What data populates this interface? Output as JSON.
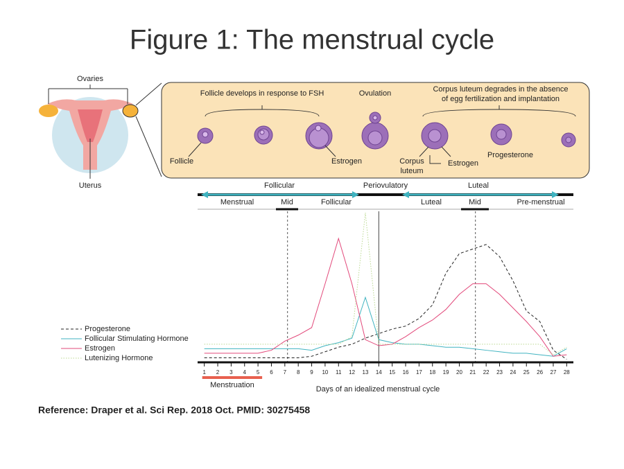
{
  "title": "Figure 1: The menstrual cycle",
  "diagram": {
    "ovaries_label": "Ovaries",
    "uterus_label": "Uterus",
    "stage_headers": [
      "Follicle develops in response to FSH",
      "Ovulation"
    ],
    "luteum_header": [
      "Corpus luteum degrades in the absence",
      "of egg fertilization and implantation"
    ],
    "follicle_label": "Follicle",
    "estrogen_label_1": "Estrogen",
    "corpus_luteum_label": [
      "Corpus",
      "luteum"
    ],
    "estrogen_label_2": "Estrogen",
    "progesterone_label": "Progesterone"
  },
  "phases": {
    "top": [
      "Follicular",
      "Periovulatory",
      "Luteal"
    ],
    "bottom": [
      "Menstrual",
      "Mid",
      "Follicular",
      "Luteal",
      "Mid",
      "Pre-menstrual"
    ]
  },
  "chart_data": {
    "type": "line",
    "x_label": "Days of an idealized menstrual cycle",
    "x": [
      1,
      2,
      3,
      4,
      5,
      6,
      7,
      8,
      9,
      10,
      11,
      12,
      13,
      14,
      15,
      16,
      17,
      18,
      19,
      20,
      21,
      22,
      23,
      24,
      25,
      26,
      27,
      28
    ],
    "xlim": [
      0.5,
      28.5
    ],
    "xticks": [
      1,
      2,
      3,
      4,
      5,
      6,
      7,
      8,
      9,
      10,
      11,
      12,
      13,
      14,
      15,
      16,
      17,
      18,
      19,
      20,
      21,
      22,
      23,
      24,
      25,
      26,
      27,
      28
    ],
    "ylim": [
      0,
      100
    ],
    "reference_days": [
      7.2,
      14,
      21.2
    ],
    "menstruation": {
      "label": "Menstruation",
      "days": [
        1,
        5
      ]
    },
    "series": [
      {
        "name": "Progesterone",
        "color": "#222222",
        "style": "dashed",
        "values": [
          3,
          3,
          3,
          3,
          3,
          3,
          3,
          3,
          4,
          7,
          10,
          12,
          16,
          19,
          22,
          24,
          29,
          38,
          59,
          72,
          75,
          78,
          70,
          54,
          34,
          27,
          8,
          2
        ]
      },
      {
        "name": "Follicular Stimulating Hormone",
        "color": "#3fb3c0",
        "style": "solid",
        "values": [
          9,
          9,
          9,
          9,
          9,
          9,
          9,
          9,
          8,
          11,
          13,
          16,
          43,
          15,
          13,
          12,
          12,
          11,
          10,
          10,
          9,
          8,
          7,
          6,
          6,
          5,
          4,
          9
        ]
      },
      {
        "name": "Estrogen",
        "color": "#e2487a",
        "style": "solid",
        "values": [
          6,
          6,
          6,
          6,
          6,
          8,
          14,
          18,
          23,
          52,
          82,
          52,
          15,
          11,
          12,
          17,
          23,
          28,
          35,
          45,
          52,
          52,
          45,
          36,
          27,
          17,
          4,
          5
        ]
      },
      {
        "name": "Lutenizing Hormone",
        "color": "#b9d88f",
        "style": "dotted",
        "values": [
          12,
          12,
          12,
          12,
          12,
          12,
          12,
          12,
          12,
          12,
          12,
          17,
          99,
          12,
          12,
          12,
          12,
          12,
          12,
          12,
          12,
          12,
          12,
          12,
          12,
          12,
          5,
          10
        ]
      }
    ]
  },
  "reference": "Reference: Draper et al. Sci Rep. 2018 Oct. PMID: 30275458"
}
